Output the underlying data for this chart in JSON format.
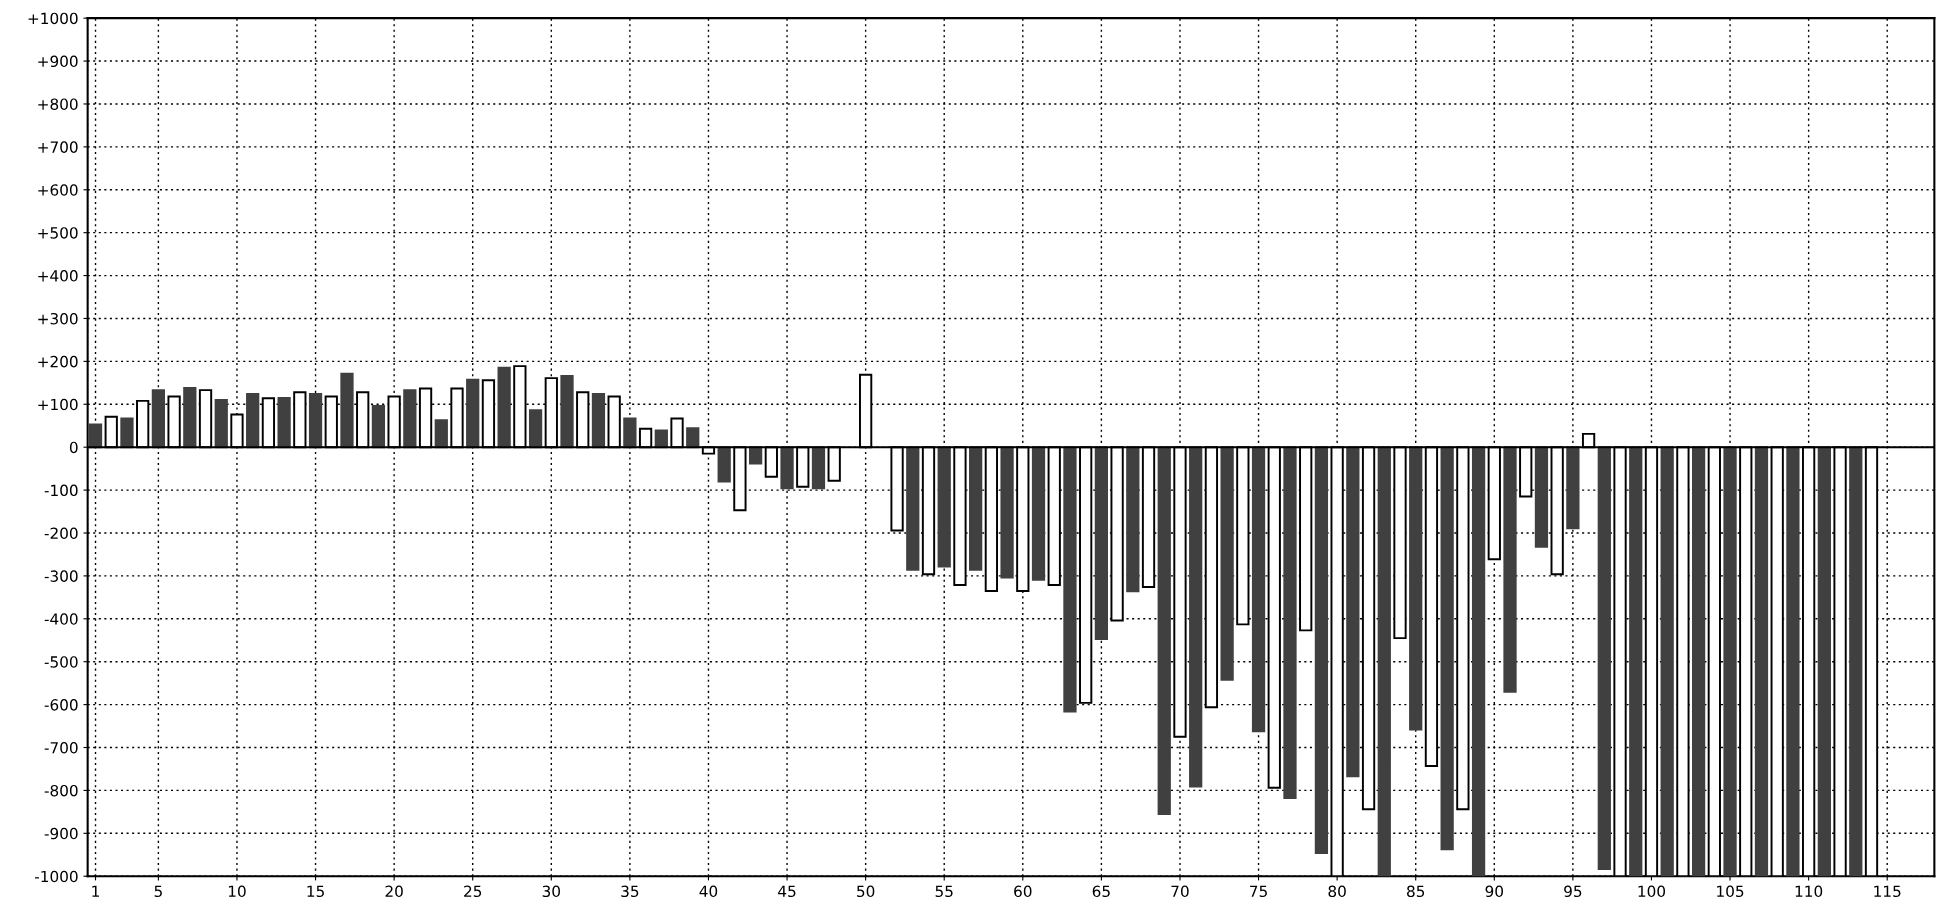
{
  "chart_data": {
    "type": "bar",
    "xlim": [
      0.5,
      118
    ],
    "xticks": [
      1,
      5,
      10,
      15,
      20,
      25,
      30,
      35,
      40,
      45,
      50,
      55,
      60,
      65,
      70,
      75,
      80,
      85,
      90,
      95,
      100,
      105,
      110,
      115
    ],
    "ylim": [
      -1000,
      1000
    ],
    "yticks": [
      {
        "value": 1000,
        "label": "+1000"
      },
      {
        "value": 900,
        "label": "+900"
      },
      {
        "value": 800,
        "label": "+800"
      },
      {
        "value": 700,
        "label": "+700"
      },
      {
        "value": 600,
        "label": "+600"
      },
      {
        "value": 500,
        "label": "+500"
      },
      {
        "value": 400,
        "label": "+400"
      },
      {
        "value": 300,
        "label": "+300"
      },
      {
        "value": 200,
        "label": "+200"
      },
      {
        "value": 100,
        "label": "+100"
      },
      0,
      {
        "value": -100,
        "label": "-100"
      },
      {
        "value": -200,
        "label": "-200"
      },
      {
        "value": -300,
        "label": "-300"
      },
      {
        "value": -400,
        "label": "-400"
      },
      {
        "value": -500,
        "label": "-500"
      },
      {
        "value": -600,
        "label": "-600"
      },
      {
        "value": -700,
        "label": "-700"
      },
      {
        "value": -800,
        "label": "-800"
      },
      {
        "value": -900,
        "label": "-900"
      },
      {
        "value": -1000,
        "label": "-1000"
      }
    ],
    "grid": true,
    "series": [
      {
        "color": "#404040",
        "x": [
          1,
          3,
          5,
          7,
          9,
          11,
          13,
          15,
          17,
          19,
          21,
          23,
          25,
          27,
          29,
          31,
          33,
          35,
          37,
          39,
          41,
          43,
          45,
          47,
          49,
          51,
          53,
          55,
          57,
          59,
          61,
          63,
          65,
          67,
          69,
          71,
          73,
          75,
          77,
          79,
          81,
          83,
          85,
          87,
          89,
          91,
          93,
          95,
          97,
          99,
          101,
          103,
          105,
          107,
          109,
          111,
          113
        ],
        "values": [
          53,
          67,
          133,
          138,
          110,
          124,
          115,
          124,
          171,
          96,
          133,
          63,
          157,
          185,
          86,
          166,
          124,
          67,
          39,
          44,
          -80,
          -38,
          -96,
          -96,
          null,
          null,
          -286,
          -278,
          -286,
          -304,
          -309,
          -616,
          -447,
          -336,
          -855,
          -791,
          -542,
          -662,
          -818,
          -946,
          -767,
          -1000,
          -658,
          -937,
          -1000,
          -570,
          -232,
          -189,
          -983,
          -1000,
          -1000,
          -1000,
          -1000,
          -1000,
          -1000,
          -1000,
          -1000
        ]
      },
      {
        "color": "#ffffff",
        "x": [
          2,
          4,
          6,
          8,
          10,
          12,
          14,
          16,
          18,
          20,
          22,
          24,
          26,
          28,
          30,
          32,
          34,
          36,
          38,
          40,
          42,
          44,
          46,
          48,
          50,
          52,
          54,
          56,
          58,
          60,
          62,
          64,
          66,
          68,
          70,
          72,
          74,
          76,
          78,
          80,
          82,
          84,
          86,
          88,
          90,
          92,
          94,
          96,
          98,
          100,
          102,
          104,
          106,
          108,
          110,
          112,
          114
        ],
        "values": [
          71,
          108,
          118,
          133,
          76,
          114,
          128,
          118,
          128,
          118,
          137,
          137,
          156,
          189,
          161,
          128,
          118,
          43,
          67,
          -15,
          -147,
          -69,
          -92,
          -78,
          169,
          -194,
          -296,
          -321,
          -335,
          -335,
          -321,
          -596,
          -404,
          -326,
          -675,
          -606,
          -413,
          -794,
          -427,
          -1000,
          -844,
          -445,
          -743,
          -844,
          -261,
          -115,
          -296,
          31,
          -1000,
          -1000,
          -1000,
          -1000,
          -1000,
          -1000,
          -1000,
          -1000,
          -1000
        ]
      }
    ]
  }
}
